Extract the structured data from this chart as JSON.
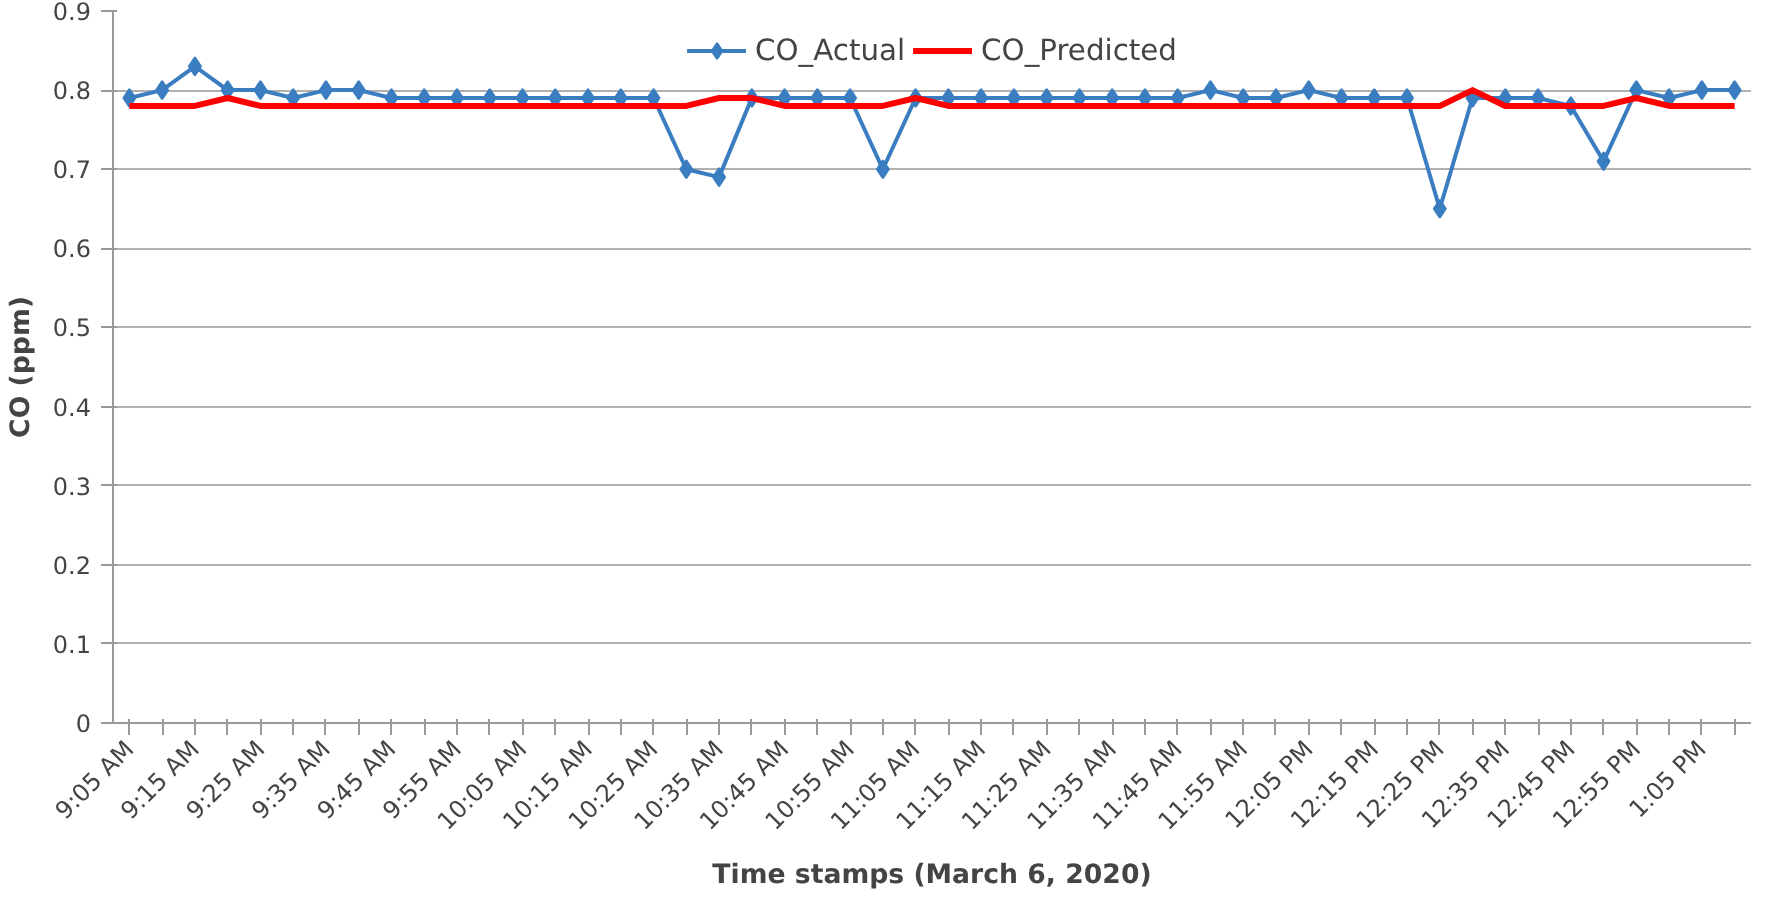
{
  "chart_data": {
    "type": "line",
    "xlabel": "Time stamps (March 6, 2020)",
    "ylabel": "CO (ppm)",
    "categories": [
      "9:05 AM",
      null,
      "9:15 AM",
      null,
      "9:25 AM",
      null,
      "9:35 AM",
      null,
      "9:45 AM",
      null,
      "9:55 AM",
      null,
      "10:05 AM",
      null,
      "10:15 AM",
      null,
      "10:25 AM",
      null,
      "10:35 AM",
      null,
      "10:45 AM",
      null,
      "10:55 AM",
      null,
      "11:05 AM",
      null,
      "11:15 AM",
      null,
      "11:25 AM",
      null,
      "11:35 AM",
      null,
      "11:45 AM",
      null,
      "11:55 AM",
      null,
      "12:05 PM",
      null,
      "12:15 PM",
      null,
      "12:25 PM",
      null,
      "12:35 PM",
      null,
      "12:45 PM",
      null,
      "12:55 PM",
      null,
      "1:05 PM",
      null
    ],
    "series": [
      {
        "name": "CO_Actual",
        "color": "#3a7dc0",
        "marker": "diamond",
        "values": [
          0.79,
          0.8,
          0.83,
          0.8,
          0.8,
          0.79,
          0.8,
          0.8,
          0.79,
          0.79,
          0.79,
          0.79,
          0.79,
          0.79,
          0.79,
          0.79,
          0.79,
          0.7,
          0.69,
          0.79,
          0.79,
          0.79,
          0.79,
          0.7,
          0.79,
          0.79,
          0.79,
          0.79,
          0.79,
          0.79,
          0.79,
          0.79,
          0.79,
          0.8,
          0.79,
          0.79,
          0.8,
          0.79,
          0.79,
          0.79,
          0.65,
          0.79,
          0.79,
          0.79,
          0.78,
          0.71,
          0.8,
          0.79,
          0.8,
          0.8
        ]
      },
      {
        "name": "CO_Predicted",
        "color": "#ff0000",
        "marker": "none",
        "values": [
          0.78,
          0.78,
          0.78,
          0.79,
          0.78,
          0.78,
          0.78,
          0.78,
          0.78,
          0.78,
          0.78,
          0.78,
          0.78,
          0.78,
          0.78,
          0.78,
          0.78,
          0.78,
          0.79,
          0.79,
          0.78,
          0.78,
          0.78,
          0.78,
          0.79,
          0.78,
          0.78,
          0.78,
          0.78,
          0.78,
          0.78,
          0.78,
          0.78,
          0.78,
          0.78,
          0.78,
          0.78,
          0.78,
          0.78,
          0.78,
          0.78,
          0.8,
          0.78,
          0.78,
          0.78,
          0.78,
          0.79,
          0.78,
          0.78,
          0.78
        ]
      }
    ],
    "ylim": [
      0,
      0.9
    ],
    "yticks": [
      0,
      0.1,
      0.2,
      0.3,
      0.4,
      0.5,
      0.6,
      0.7,
      0.8,
      0.9
    ],
    "grid": "y",
    "legend": "top",
    "line_style": "solid"
  }
}
